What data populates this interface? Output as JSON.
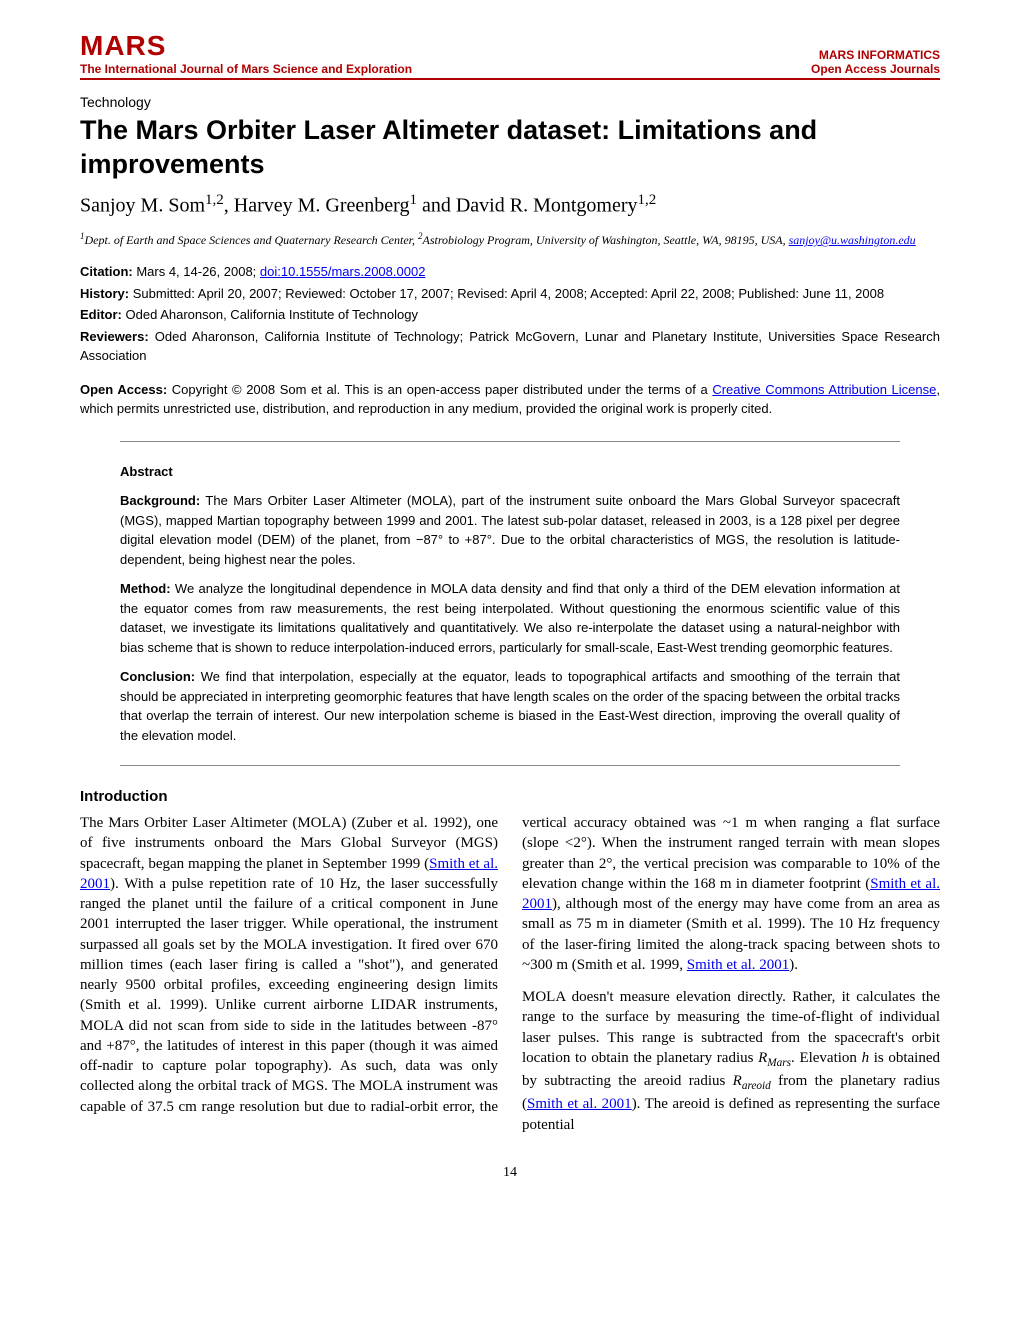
{
  "header": {
    "journal_title": "MARS",
    "journal_subtitle": "The International Journal of Mars Science and Exploration",
    "right_top": "MARS INFORMATICS",
    "right_bottom": "Open Access Journals"
  },
  "category": "Technology",
  "title": "The Mars Orbiter Laser Altimeter dataset: Limitations and improvements",
  "authors_html": "Sanjoy M. Som<sup>1,2</sup>, Harvey M. Greenberg<sup>1</sup> and David R. Montgomery<sup>1,2</sup>",
  "affiliation_html": "<sup>1</sup>Dept. of Earth and Space Sciences and Quaternary Research Center, <sup>2</sup>Astrobiology Program, University of Washington, Seattle, WA, 98195, USA, ",
  "email": "sanjoy@u.washington.edu",
  "citation_label": "Citation:",
  "citation_text": " Mars 4, 14-26, 2008; ",
  "doi": "doi:10.1555/mars.2008.0002",
  "history_label": "History:",
  "history_text": " Submitted: April 20, 2007; Reviewed: October 17, 2007; Revised: April 4, 2008; Accepted: April 22, 2008; Published: June 11, 2008",
  "editor_label": "Editor:",
  "editor_text": " Oded Aharonson, California Institute of Technology",
  "reviewers_label": "Reviewers:",
  "reviewers_text": " Oded Aharonson, California Institute of Technology; Patrick McGovern, Lunar and Planetary Institute, Universities Space Research Association",
  "open_access_label": "Open Access:",
  "open_access_pre": " Copyright © 2008 Som et al. This is an open-access paper distributed under the terms of a ",
  "cc_link": "Creative Commons Attribution License",
  "open_access_post": ", which permits unrestricted use, distribution, and reproduction in any medium, provided the original work is properly cited.",
  "abstract": {
    "title": "Abstract",
    "background_label": "Background:",
    "background": " The Mars Orbiter Laser Altimeter (MOLA), part of the instrument suite onboard the Mars Global Surveyor spacecraft (MGS), mapped Martian topography between 1999 and 2001. The latest sub-polar dataset, released in 2003, is a 128 pixel per degree digital elevation model (DEM) of the planet, from −87° to +87°. Due to the orbital characteristics of MGS, the resolution is latitude-dependent, being highest near the poles.",
    "method_label": "Method:",
    "method": " We analyze the longitudinal dependence in MOLA data density and find that only a third of the DEM elevation information at the equator comes from raw measurements, the rest being interpolated. Without questioning the enormous scientific value of this dataset, we investigate its limitations qualitatively and quantitatively. We also re-interpolate the dataset using a natural-neighbor with bias scheme that is shown to reduce interpolation-induced errors, particularly for small-scale, East-West trending geomorphic features.",
    "conclusion_label": "Conclusion:",
    "conclusion": "  We find that interpolation, especially at the equator, leads to topographical artifacts and smoothing of the terrain that should be appreciated in interpreting geomorphic features that have length scales on the order of the spacing between the orbital tracks that overlap the terrain of interest. Our new interpolation scheme is biased in the East-West direction, improving the overall quality of the elevation model."
  },
  "intro_title": "Introduction",
  "intro_p1_pre": "The Mars Orbiter Laser Altimeter (MOLA) (Zuber et al. 1992), one of five instruments onboard the Mars Global Surveyor (MGS) spacecraft, began mapping the planet in September 1999 (",
  "smith_link": "Smith et al. 2001",
  "intro_p1_post": "). With a pulse repetition rate of 10 Hz, the laser successfully ranged the planet until the failure of a critical component in June 2001 interrupted the laser trigger. While operational, the instrument surpassed all goals set by the MOLA investigation. It fired over 670 million times (each laser firing is called a \"shot\"), and generated nearly 9500 orbital profiles, exceeding engineering design limits (Smith et al. 1999). Unlike current airborne LIDAR instruments, MOLA did not scan from side to side in the latitudes between -87° and +87°, the latitudes of interest in this paper (though it was aimed off-nadir to capture polar topography). As such, data was only collected along the orbital track of MGS. The MOLA instrument was capable of 37.5 cm range resolution but due to radial-orbit error, the vertical accuracy obtained was ~1 m when ranging a flat surface (slope <2°). When the instrument ranged terrain with mean slopes greater than 2°, the vertical precision was comparable to 10% of the elevation change within the 168 m in diameter footprint  (",
  "intro_p1_post2": "), although most of the energy may have come from an area as small as 75 m in diameter (Smith et al. 1999).  The 10 Hz frequency of the laser-firing limited the along-track spacing between shots to ~300 m  (Smith et al. 1999, ",
  "intro_p1_end": ").",
  "intro_p2_pre": "MOLA doesn't measure elevation directly. Rather, it calculates the range to the surface by measuring the time-of-flight of individual laser pulses. This range is subtracted from the spacecraft's orbit location to obtain the planetary radius ",
  "rmars": "R",
  "rmars_sub": "Mars",
  "intro_p2_mid": ". Elevation ",
  "h_var": "h",
  "intro_p2_mid2": " is obtained by subtracting the areoid radius ",
  "rareoid": "R",
  "rareoid_sub": "areoid",
  "intro_p2_mid3": " from the planetary radius (",
  "intro_p2_end": "). The areoid is defined as representing the surface potential",
  "page_number": "14",
  "colors": {
    "brand_red": "#b00000",
    "link_blue": "#0000ee",
    "rule_gray": "#888888"
  }
}
